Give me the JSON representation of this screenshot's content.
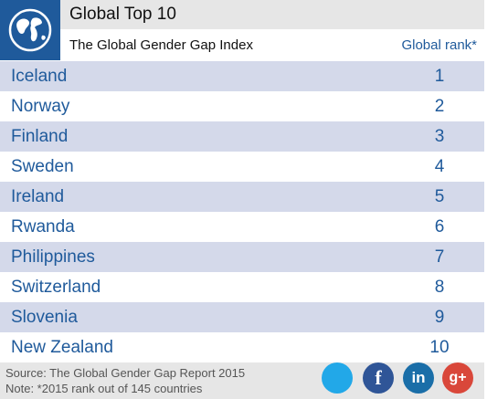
{
  "colors": {
    "brand_blue": "#1f5a9b",
    "row_alt": "#d4d9ea",
    "header_gray": "#e6e6e6"
  },
  "header": {
    "title": "Global Top 10",
    "subtitle": "The Global Gender Gap Index",
    "column_label": "Global rank*"
  },
  "rows": [
    {
      "country": "Iceland",
      "rank": "1"
    },
    {
      "country": "Norway",
      "rank": "2"
    },
    {
      "country": "Finland",
      "rank": "3"
    },
    {
      "country": "Sweden",
      "rank": "4"
    },
    {
      "country": "Ireland",
      "rank": "5"
    },
    {
      "country": "Rwanda",
      "rank": "6"
    },
    {
      "country": "Philippines",
      "rank": "7"
    },
    {
      "country": "Switzerland",
      "rank": "8"
    },
    {
      "country": "Slovenia",
      "rank": "9"
    },
    {
      "country": "New Zealand",
      "rank": "10"
    }
  ],
  "footer": {
    "source": "Source: The Global Gender Gap Report 2015",
    "note": "Note: *2015 rank out of 145 countries"
  },
  "social": {
    "twitter_icon": "twitter-icon",
    "facebook_icon": "facebook-icon",
    "facebook_glyph": "f",
    "linkedin_icon": "linkedin-icon",
    "linkedin_glyph": "in",
    "googleplus_icon": "google-plus-icon",
    "googleplus_glyph": "g+"
  }
}
